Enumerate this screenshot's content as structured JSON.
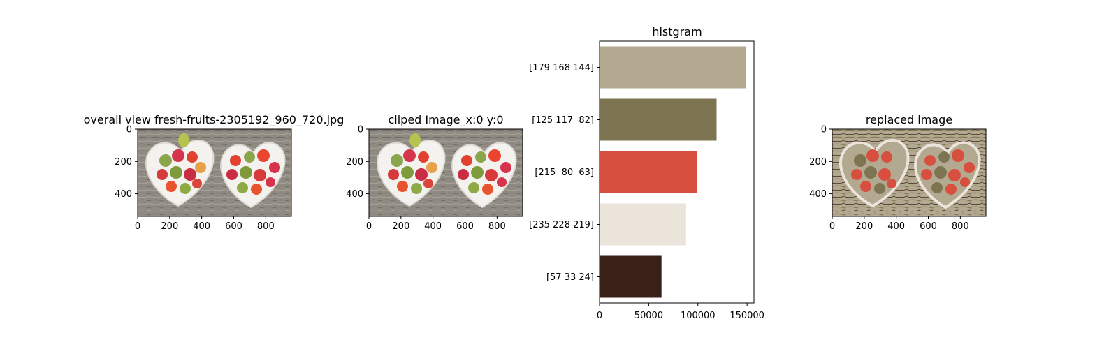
{
  "chart_data": [
    {
      "type": "image",
      "title": "overall view fresh-fruits-2305192_960_720.jpg",
      "xticks": [
        "0",
        "200",
        "400",
        "600",
        "800"
      ],
      "yticks": [
        "0",
        "200",
        "400"
      ],
      "xlim": [
        0,
        960
      ],
      "ylim": [
        540,
        0
      ],
      "image": "fruit-bowls-photo"
    },
    {
      "type": "image",
      "title": "cliped Image_x:0 y:0",
      "xticks": [
        "0",
        "200",
        "400",
        "600",
        "800"
      ],
      "yticks": [
        "0",
        "200",
        "400"
      ],
      "xlim": [
        0,
        960
      ],
      "ylim": [
        540,
        0
      ],
      "image": "fruit-bowls-photo"
    },
    {
      "type": "bar",
      "orientation": "horizontal",
      "title": "histgram",
      "categories": [
        "[179 168 144]",
        "[125 117  82]",
        "[215  80  63]",
        "[235 228 219]",
        "[57 33 24]"
      ],
      "values": [
        149000,
        119000,
        99000,
        88000,
        63000
      ],
      "colors": [
        "#b3a990",
        "#7d7552",
        "#d7503f",
        "#ebe4db",
        "#392118"
      ],
      "xticks": [
        "0",
        "50000",
        "100000",
        "150000"
      ],
      "xlim": [
        0,
        157000
      ]
    },
    {
      "type": "image",
      "title": "replaced image",
      "xticks": [
        "0",
        "200",
        "400",
        "600",
        "800"
      ],
      "yticks": [
        "0",
        "200",
        "400"
      ],
      "xlim": [
        0,
        960
      ],
      "ylim": [
        540,
        0
      ],
      "image": "quantized-fruit-bowls"
    }
  ]
}
